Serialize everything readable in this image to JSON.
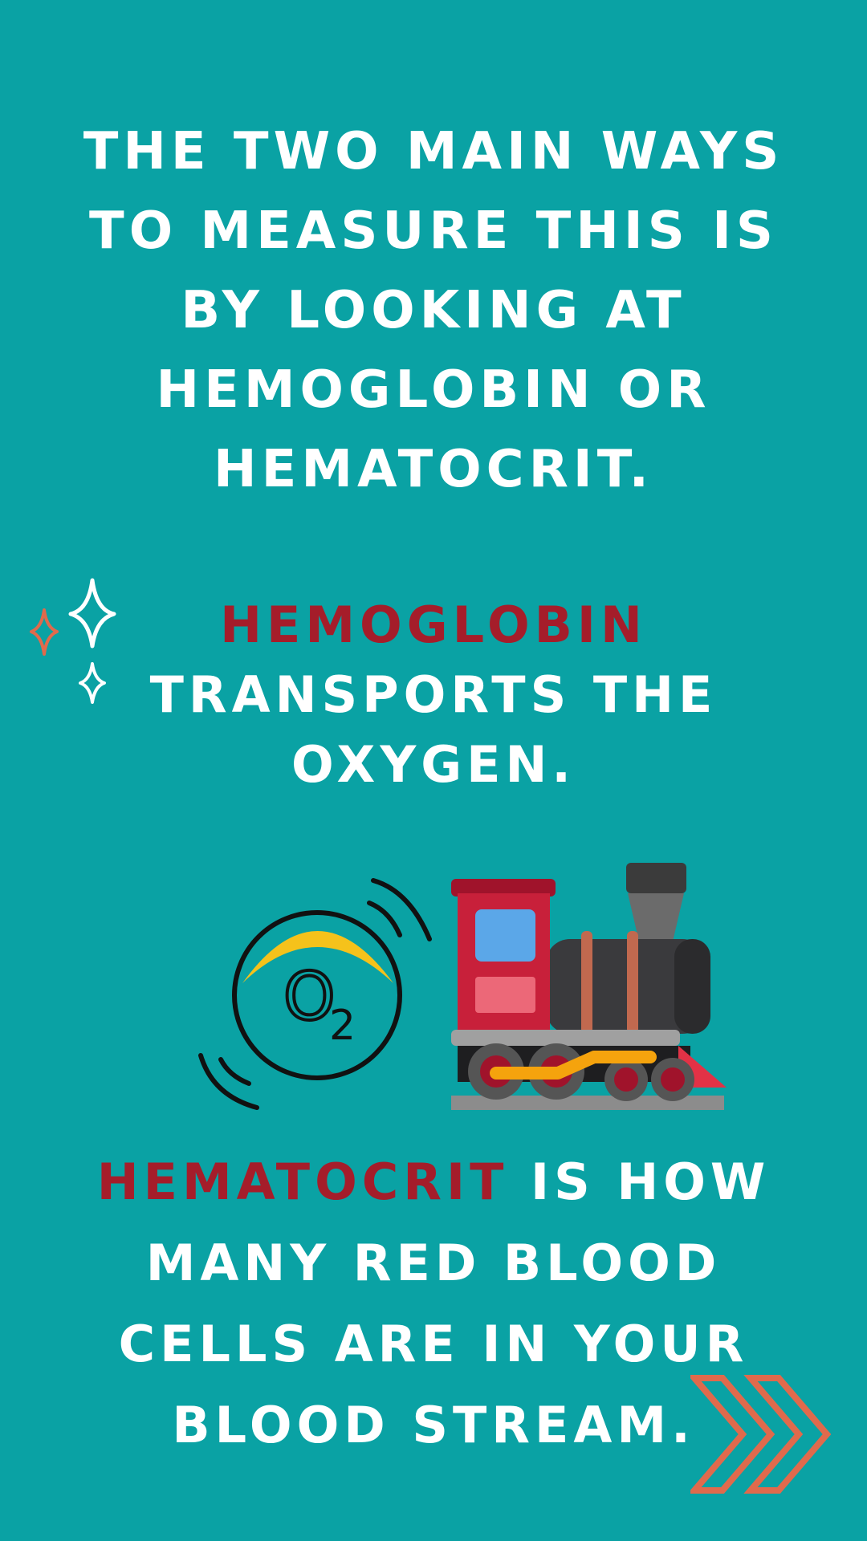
{
  "intro": {
    "lines": [
      "The two main ways",
      "to measure this is",
      "by looking at",
      "hemoglobin or",
      "hematocrit."
    ]
  },
  "hemoglobin_section": {
    "term": "Hemoglobin",
    "lines": [
      "transports the",
      "oxygen."
    ]
  },
  "hematocrit_section": {
    "term": "Hematocrit",
    "first_line_rest": " is how",
    "lines": [
      "many red blood",
      "cells are in your",
      "blood stream."
    ]
  },
  "illustration": {
    "o2_label": "O",
    "o2_subscript": "2"
  },
  "colors": {
    "background": "#0aa2a4",
    "text": "#ffffff",
    "accent": "#a51d2a",
    "decoration": "#e06a4c"
  },
  "icons": [
    "sparkle-icon",
    "oxygen-icon",
    "train-icon",
    "double-chevron-right-icon"
  ]
}
